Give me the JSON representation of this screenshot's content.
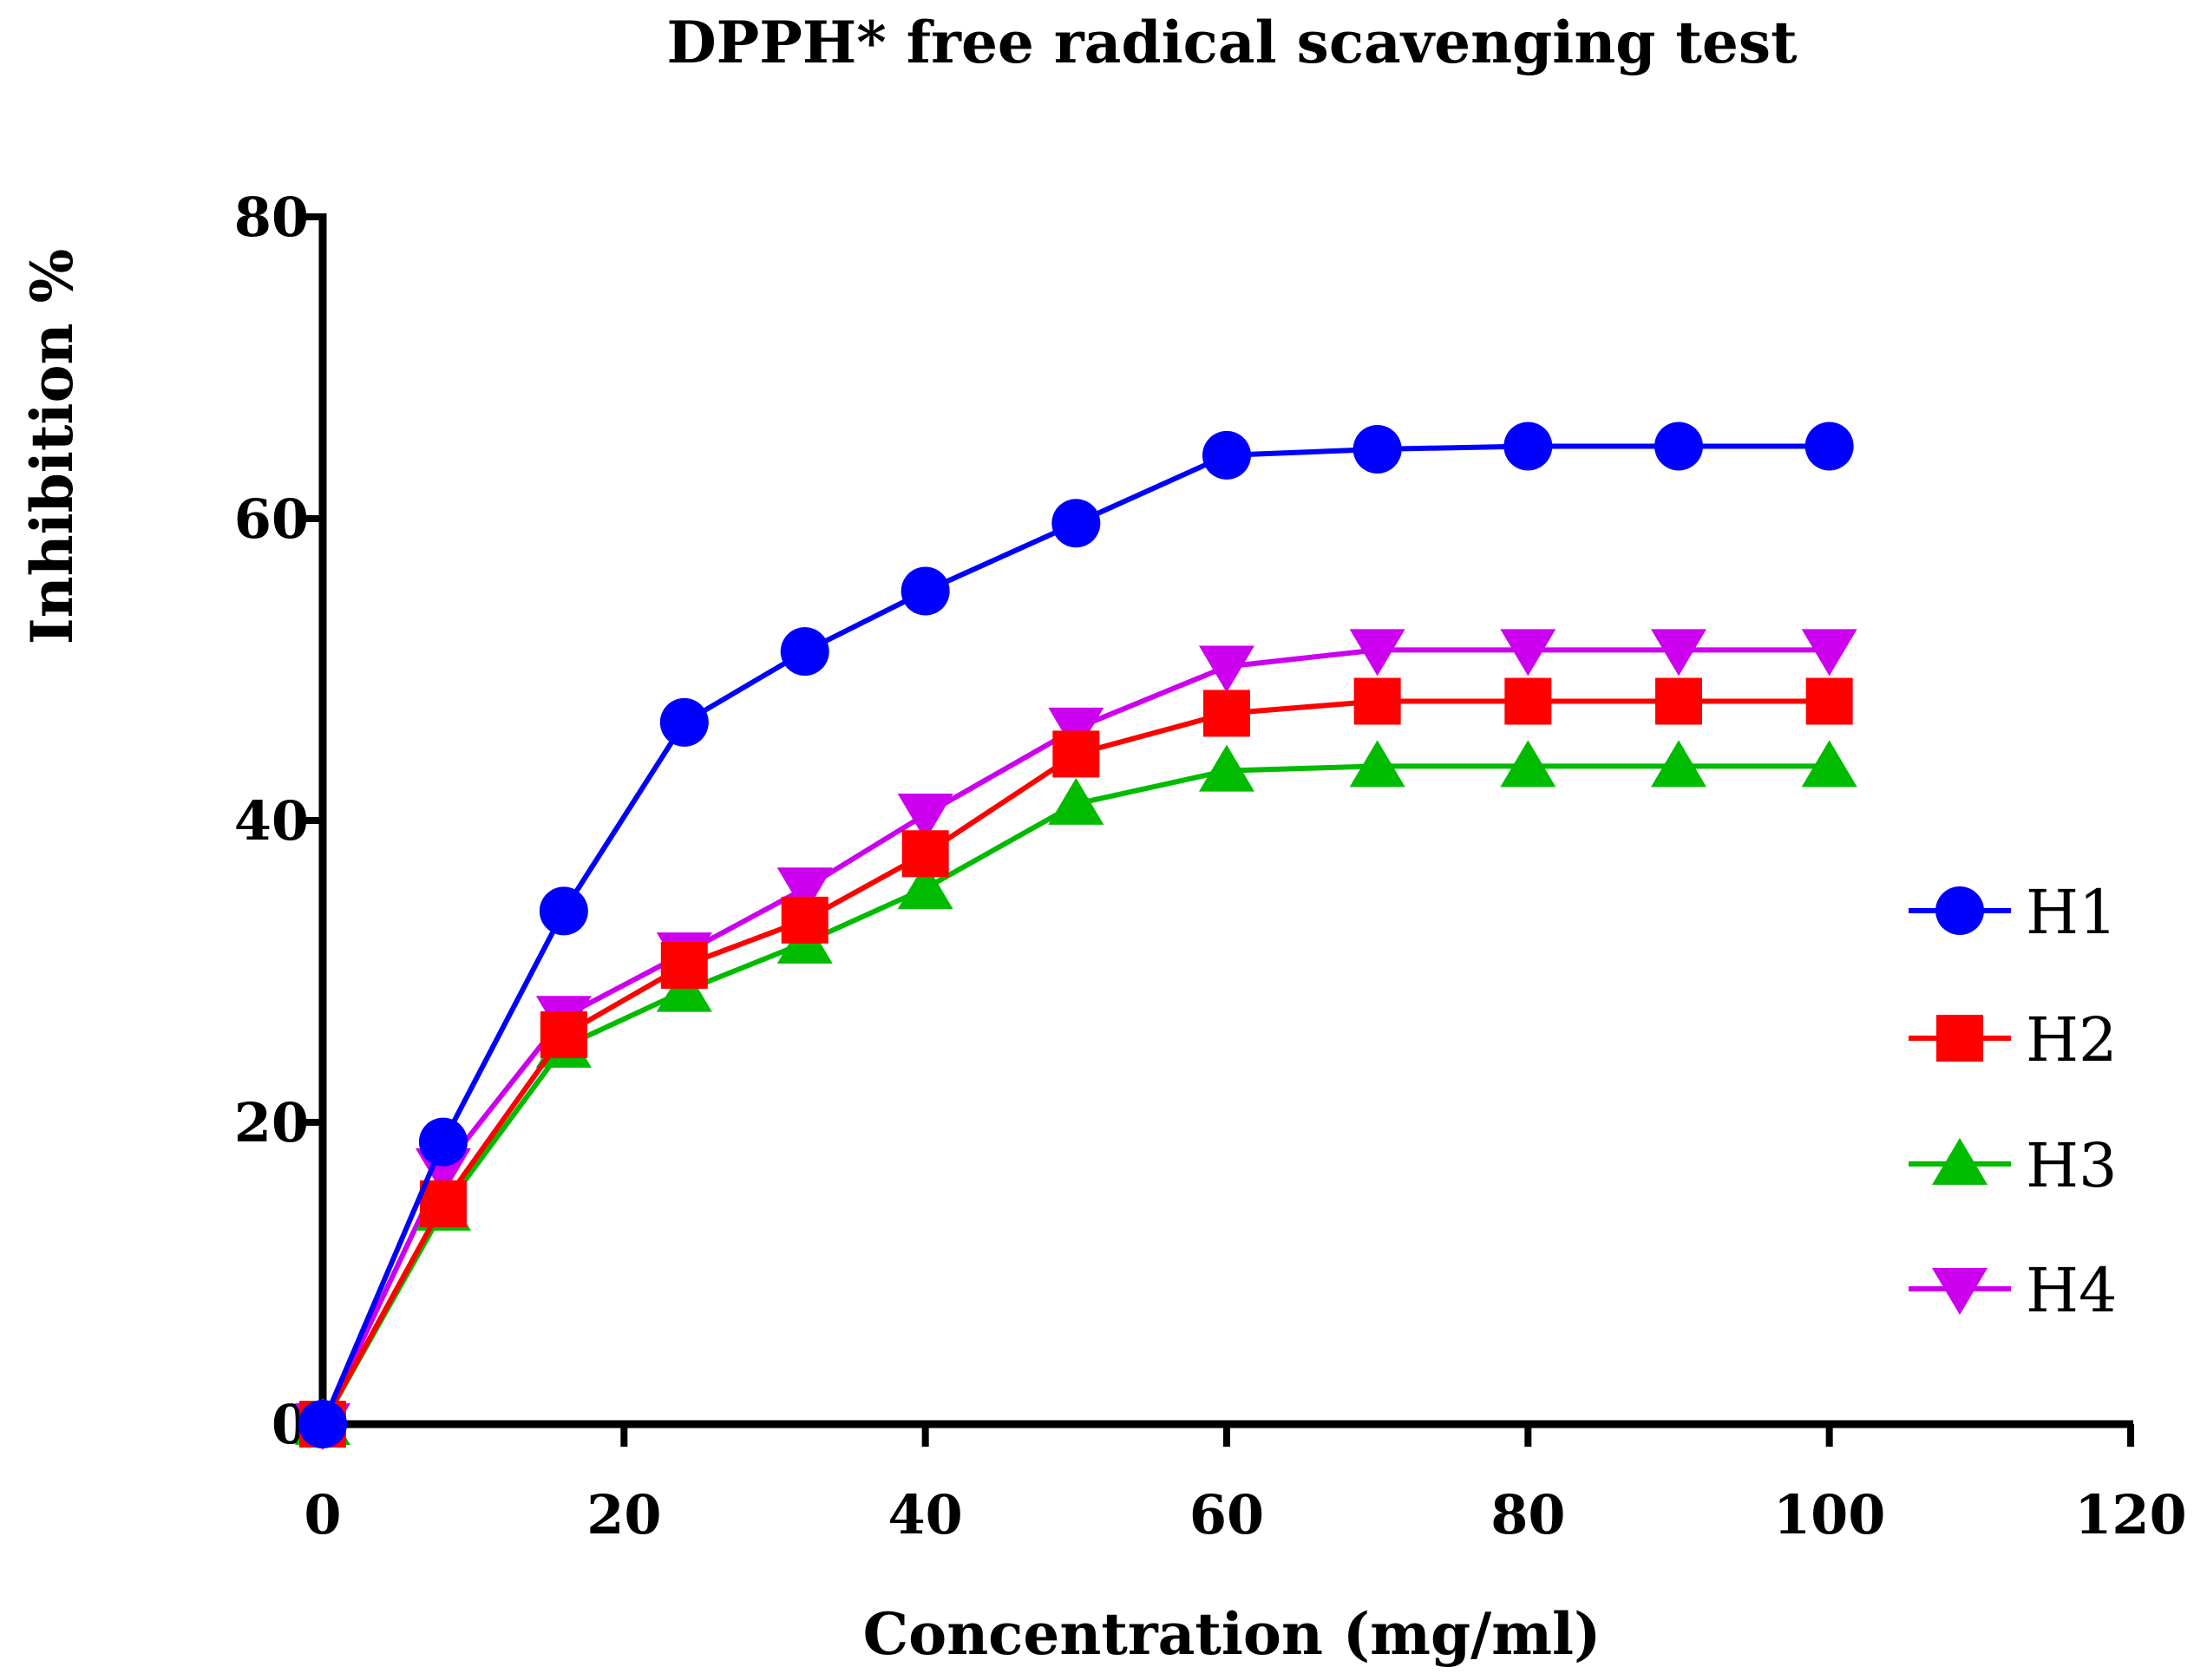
{
  "chart_data": {
    "type": "line",
    "title": "DPPH* free radical scavenging test",
    "xlabel": "Concentration (mg/ml)",
    "ylabel": "Inhibition %",
    "xlim": [
      0,
      120
    ],
    "ylim": [
      0,
      80
    ],
    "xticks": [
      "0",
      "20",
      "40",
      "60",
      "80",
      "100",
      "120"
    ],
    "yticks": [
      "0",
      "20",
      "40",
      "60",
      "80"
    ],
    "x": [
      0,
      8,
      16,
      24,
      32,
      40,
      50,
      60,
      70,
      80,
      90,
      100
    ],
    "legend_position": "right",
    "series": [
      {
        "name": "H1",
        "marker": "circle",
        "color": "#0000ff",
        "values": [
          0,
          18.7,
          34.0,
          46.5,
          51.2,
          55.2,
          59.7,
          64.2,
          64.6,
          64.8,
          64.8,
          64.8
        ]
      },
      {
        "name": "H2",
        "marker": "square",
        "color": "#ff0000",
        "values": [
          0,
          14.6,
          25.8,
          30.4,
          33.4,
          37.8,
          44.4,
          47.1,
          47.9,
          47.9,
          47.9,
          47.9
        ]
      },
      {
        "name": "H3",
        "marker": "triangle-up",
        "color": "#00bb00",
        "values": [
          0,
          14.2,
          25.0,
          28.7,
          31.9,
          35.5,
          41.1,
          43.3,
          43.6,
          43.6,
          43.6,
          43.6
        ]
      },
      {
        "name": "H4",
        "marker": "triangle-down",
        "color": "#cc00ee",
        "values": [
          0,
          16.9,
          27.0,
          31.2,
          35.5,
          40.4,
          46.1,
          50.2,
          51.3,
          51.3,
          51.3,
          51.3
        ]
      }
    ]
  }
}
